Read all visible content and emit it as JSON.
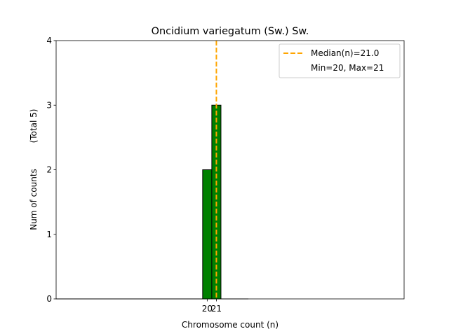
{
  "chart_data": {
    "type": "bar",
    "title": "Oncidium variegatum (Sw.) Sw.",
    "xlabel": "Chromosome count (n)",
    "ylabel": "Num of counts",
    "ylabel_note": "(Total 5)",
    "x": [
      20,
      21
    ],
    "values": [
      2,
      3
    ],
    "x_ticks": [
      20,
      21
    ],
    "y_ticks": [
      0,
      1,
      2,
      3,
      4
    ],
    "xlim": [
      3.5,
      41.5
    ],
    "ylim": [
      0,
      4
    ],
    "bin_width": 1,
    "bar_color": "#008000",
    "bar_edge_color": "#000000",
    "median": 21.0,
    "median_color": "#ffa500",
    "grid": false,
    "legend_position": "top-right",
    "legend": {
      "median_label": "Median(n)=21.0",
      "range_label": "Min=20, Max=21"
    }
  }
}
